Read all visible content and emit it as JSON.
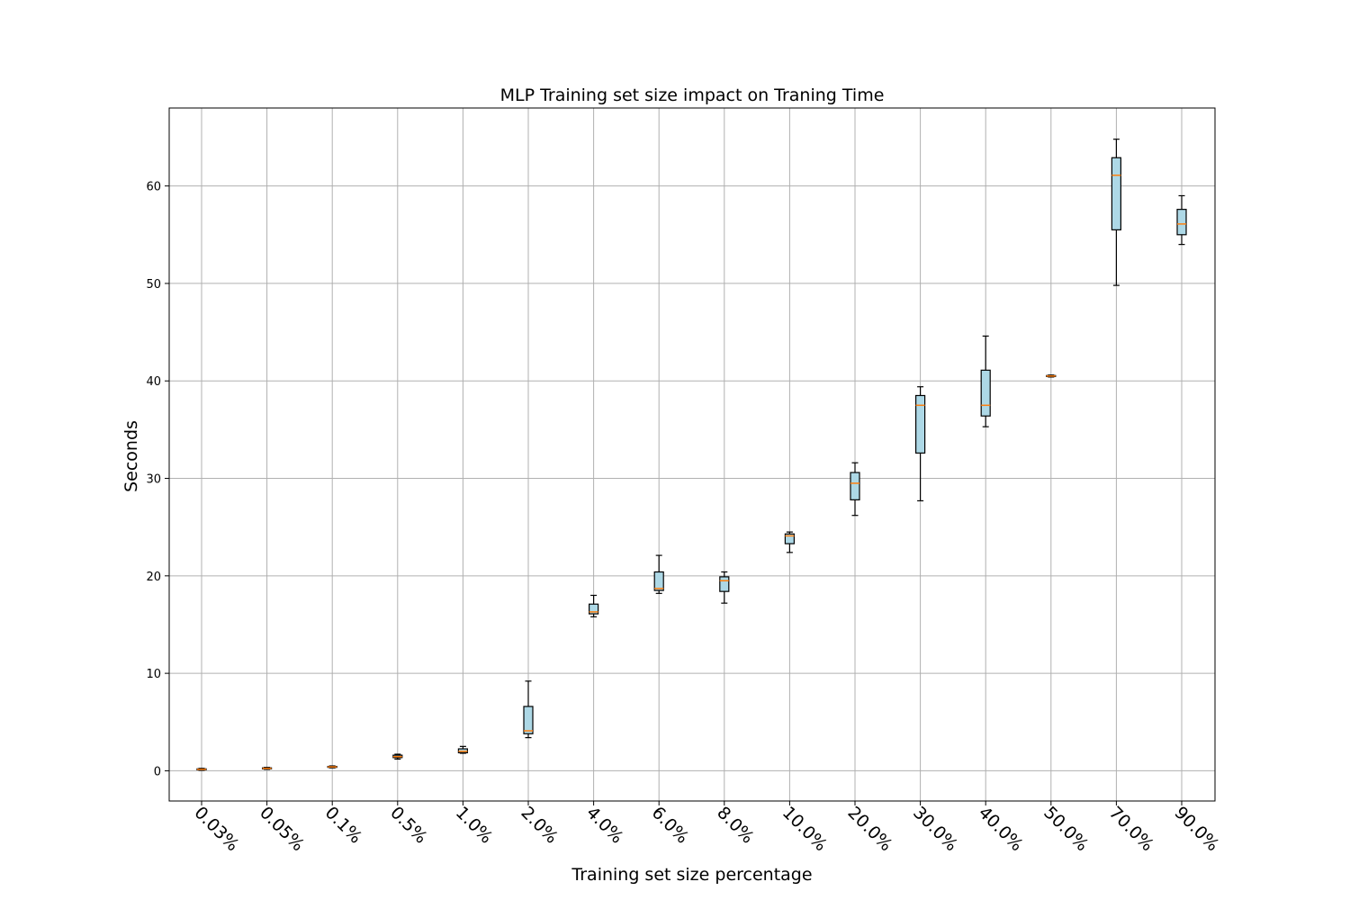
{
  "chart_data": {
    "type": "box",
    "title": "MLP Training set size impact on Traning Time",
    "xlabel": "Training set size percentage",
    "ylabel": "Seconds",
    "ylim": [
      -3.1,
      68
    ],
    "yticks": [
      "0",
      "10",
      "20",
      "30",
      "40",
      "50",
      "60"
    ],
    "grid": true,
    "categories": [
      "0.03%",
      "0.05%",
      "0.1%",
      "0.5%",
      "1.0%",
      "2.0%",
      "4.0%",
      "6.0%",
      "8.0%",
      "10.0%",
      "20.0%",
      "30.0%",
      "40.0%",
      "50.0%",
      "70.0%",
      "90.0%"
    ],
    "boxes": [
      {
        "min": 0.05,
        "q1": 0.1,
        "median": 0.15,
        "q3": 0.2,
        "max": 0.25
      },
      {
        "min": 0.15,
        "q1": 0.2,
        "median": 0.25,
        "q3": 0.3,
        "max": 0.35
      },
      {
        "min": 0.3,
        "q1": 0.35,
        "median": 0.4,
        "q3": 0.45,
        "max": 0.5
      },
      {
        "min": 1.2,
        "q1": 1.35,
        "median": 1.45,
        "q3": 1.6,
        "max": 1.7
      },
      {
        "min": 1.8,
        "q1": 1.85,
        "median": 2.0,
        "q3": 2.25,
        "max": 2.5
      },
      {
        "min": 3.4,
        "q1": 3.8,
        "median": 4.1,
        "q3": 6.6,
        "max": 9.2
      },
      {
        "min": 15.8,
        "q1": 16.1,
        "median": 16.3,
        "q3": 17.1,
        "max": 18.0
      },
      {
        "min": 18.2,
        "q1": 18.5,
        "median": 18.7,
        "q3": 20.4,
        "max": 22.1
      },
      {
        "min": 17.2,
        "q1": 18.4,
        "median": 19.5,
        "q3": 19.9,
        "max": 20.4
      },
      {
        "min": 22.4,
        "q1": 23.3,
        "median": 24.1,
        "q3": 24.3,
        "max": 24.5
      },
      {
        "min": 26.2,
        "q1": 27.8,
        "median": 29.5,
        "q3": 30.6,
        "max": 31.6
      },
      {
        "min": 27.7,
        "q1": 32.6,
        "median": 37.5,
        "q3": 38.5,
        "max": 39.4
      },
      {
        "min": 35.3,
        "q1": 36.4,
        "median": 37.5,
        "q3": 41.1,
        "max": 44.6
      },
      {
        "min": 40.4,
        "q1": 40.45,
        "median": 40.5,
        "q3": 40.55,
        "max": 40.6
      },
      {
        "min": 49.8,
        "q1": 55.5,
        "median": 61.1,
        "q3": 62.9,
        "max": 64.8
      },
      {
        "min": 54.0,
        "q1": 55.0,
        "median": 56.1,
        "q3": 57.6,
        "max": 59.0
      }
    ]
  }
}
